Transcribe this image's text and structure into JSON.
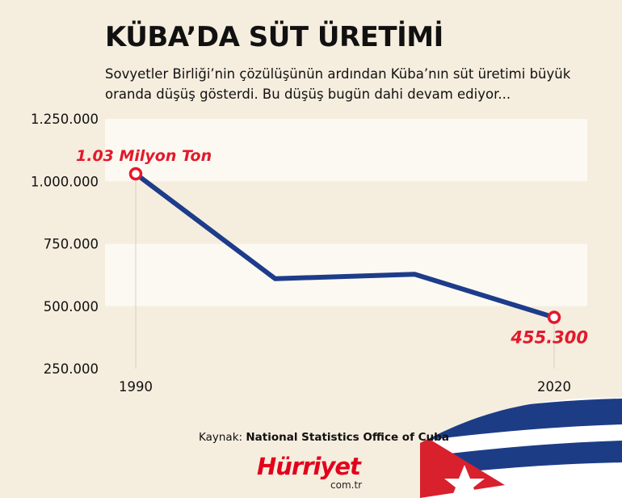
{
  "title": "KÜBA’DA SÜT ÜRETİMİ",
  "subtitle": "Sovyetler Birliği’nin çözülüşünün ardından Küba’nın süt üretimi büyük oranda düşüş gösterdi. Bu düşüş bugün dahi devam ediyor...",
  "source": {
    "prefix": "Kaynak:",
    "name": "National Statistics Office of Cuba"
  },
  "logo": {
    "brand": "Hürriyet",
    "domain": "com.tr"
  },
  "colors": {
    "line": "#1d3c8a",
    "accent": "#e3192b",
    "band": "#fcf9f2",
    "background": "#f5edde"
  },
  "chart_data": {
    "type": "line",
    "x": [
      1990,
      2000,
      2010,
      2020
    ],
    "series": [
      {
        "values": [
          1030000,
          610000,
          628000,
          455300
        ]
      }
    ],
    "x_tick_labels": [
      "1990",
      "2020"
    ],
    "y_ticks": [
      250000,
      500000,
      750000,
      1000000,
      1250000
    ],
    "y_tick_labels": [
      "250.000",
      "500.000",
      "750.000",
      "1.000.000",
      "1.250.000"
    ],
    "ylim": [
      250000,
      1250000
    ],
    "annotations": [
      {
        "label": "1.03 Milyon Ton",
        "point": 0
      },
      {
        "label": "455.300",
        "point": 3
      }
    ],
    "grid": false
  }
}
